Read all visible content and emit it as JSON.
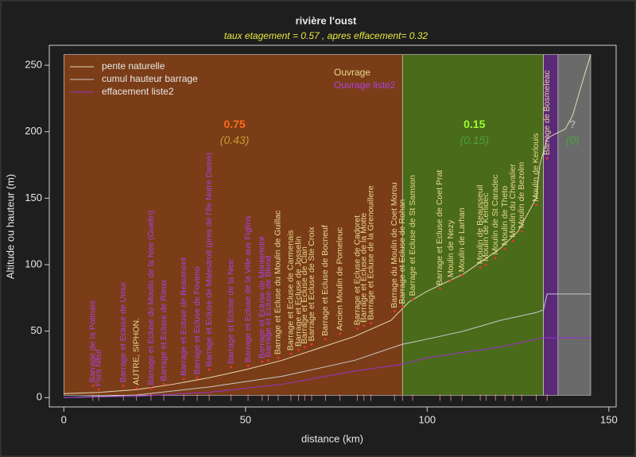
{
  "chart_data": {
    "type": "profile",
    "title": "rivière l'oust",
    "subtitle": "taux etagement = 0.57 , apres effacement= 0.32",
    "x_label": "distance (km)",
    "y_label": "Altitude ou hauteur (m)",
    "xlim": [
      -4,
      152
    ],
    "ylim": [
      -7,
      265
    ],
    "xticks": [
      0,
      50,
      100,
      150
    ],
    "yticks": [
      0,
      50,
      100,
      150,
      200,
      250
    ],
    "regions": [
      {
        "from": 0,
        "to": 93.2,
        "top": 258,
        "color": "#7a3d17"
      },
      {
        "from": 93.2,
        "to": 132,
        "top": 258,
        "color": "#4a6b1a"
      },
      {
        "from": 132,
        "to": 136,
        "top": 258,
        "color": "#5a2a78"
      },
      {
        "from": 136,
        "to": 145,
        "top": 258,
        "color": "#6a6a6a"
      }
    ],
    "series": [
      {
        "name": "pente naturelle",
        "color": "#e8d8b8",
        "x": [
          0,
          10,
          20,
          30,
          40,
          50,
          60,
          70,
          80,
          90,
          95,
          100,
          110,
          120,
          125,
          130,
          131,
          132,
          133,
          135,
          138,
          140,
          143,
          145
        ],
        "values": [
          3,
          4,
          6,
          10,
          15,
          21,
          28,
          37,
          46,
          58,
          72,
          80,
          93,
          112,
          125,
          150,
          175,
          185,
          195,
          198,
          202,
          212,
          240,
          258
        ]
      },
      {
        "name": "cumul hauteur barrage",
        "color": "#c8c8c8",
        "x": [
          0,
          20,
          40,
          60,
          80,
          93,
          100,
          110,
          120,
          130,
          132,
          133,
          145
        ],
        "values": [
          0,
          2,
          8,
          16,
          28,
          40,
          44,
          50,
          58,
          64,
          66,
          78,
          78
        ]
      },
      {
        "name": "effacement liste2",
        "color": "#9b30d0",
        "x": [
          0,
          20,
          40,
          60,
          80,
          93,
          100,
          120,
          132,
          133,
          145
        ],
        "values": [
          0,
          1,
          4,
          10,
          20,
          25,
          30,
          38,
          45,
          45,
          45
        ]
      }
    ],
    "label_groups": [
      {
        "name": "Ouvrage",
        "color": "#e8d890",
        "labels": [
          {
            "text": "AUTRE, SIPHON.",
            "x": 20,
            "y": 7
          },
          {
            "text": "Barrage et Ecluse du Moulin de Guillac",
            "x": 59,
            "y": 30
          },
          {
            "text": "Barrage et Ecluse de Carmenais",
            "x": 62.5,
            "y": 33
          },
          {
            "text": "Barrage et Ecluse de Josselin",
            "x": 64.6,
            "y": 36
          },
          {
            "text": "Barrage et Ecluse de Clan",
            "x": 66.3,
            "y": 38
          },
          {
            "text": "Barrage et Ecluse de Ste Croix",
            "x": 68.2,
            "y": 40
          },
          {
            "text": "Barrage et Ecluse de Bocneuf",
            "x": 72,
            "y": 44
          },
          {
            "text": "Ancien Moulin de Pomeleuc",
            "x": 76,
            "y": 48
          },
          {
            "text": "Barrage et Ecluse de Cadoret",
            "x": 80.8,
            "y": 52
          },
          {
            "text": "Barrage et Ecluse de la Motte",
            "x": 82.6,
            "y": 54
          },
          {
            "text": "Barrage et Ecluse de la Grenouillere",
            "x": 84.5,
            "y": 56
          },
          {
            "text": "Barrage du Moulin de Coet Morou",
            "x": 91,
            "y": 65
          },
          {
            "text": "Barrage et Ecluse de Rohan",
            "x": 93.2,
            "y": 68
          },
          {
            "text": "Barrage et Ecluse de St Samson",
            "x": 96,
            "y": 74
          },
          {
            "text": "Barrage et Ecluse de Coet Prat",
            "x": 103.5,
            "y": 82
          },
          {
            "text": "Moulin de Nezy",
            "x": 106.5,
            "y": 88
          },
          {
            "text": "Moulin de Larhan",
            "x": 109.6,
            "y": 92
          },
          {
            "text": "Moulin de Beausseuil",
            "x": 114.6,
            "y": 98
          },
          {
            "text": "Moulin de Kerlidec",
            "x": 116.2,
            "y": 100
          },
          {
            "text": "Moulin de St Caradec",
            "x": 118.8,
            "y": 105
          },
          {
            "text": "Moulin de Theto",
            "x": 121.4,
            "y": 112
          },
          {
            "text": "Moulin du Chevalier",
            "x": 123.6,
            "y": 118
          },
          {
            "text": "Moulin de Bezolm",
            "x": 126,
            "y": 125
          },
          {
            "text": "Moulin de Kerlouis",
            "x": 130,
            "y": 145
          },
          {
            "text": "Barrage de Bosmeleac",
            "x": 133,
            "y": 180
          }
        ]
      },
      {
        "name": "Ouvrage liste2",
        "color": "#b040e0",
        "labels": [
          {
            "text": "Barrage de la Potinais",
            "x": 8,
            "y": 9
          },
          {
            "text": "Pont Neuf",
            "x": 9.6,
            "y": 6
          },
          {
            "text": "Barrage et Ecluse de Umur",
            "x": 16.4,
            "y": 9
          },
          {
            "text": "Barrage et Ecluse du Moulin de la Nee (Guelin)",
            "x": 24,
            "y": 7
          },
          {
            "text": "Barrage et Ecluse de Rieux",
            "x": 27.5,
            "y": 10
          },
          {
            "text": "Barrage et Ecluse de Beaumont",
            "x": 33,
            "y": 14
          },
          {
            "text": "Barrage et Ecluse de Foveno",
            "x": 36.7,
            "y": 15
          },
          {
            "text": "Barrage et Ecluse de Malestroit (pres de l'Ile Notre Dame)",
            "x": 40,
            "y": 21
          },
          {
            "text": "Barrage et Ecluse de la Nee",
            "x": 46,
            "y": 23
          },
          {
            "text": "Barrage et Ecluse de la Ville aux Figlins",
            "x": 50.7,
            "y": 24
          },
          {
            "text": "Barrage et Ecluse de Montertelot",
            "x": 54.6,
            "y": 27
          },
          {
            "text": "Barrage et Ecluse de Blond",
            "x": 56.3,
            "y": 28
          }
        ]
      }
    ],
    "section_labels": [
      {
        "label": "0.75",
        "x": 47,
        "y": 205,
        "color": "#ff6a1a"
      },
      {
        "label": "(0.43)",
        "x": 47,
        "y": 193,
        "color": "#c89a30"
      },
      {
        "label": "0.15",
        "x": 113,
        "y": 205,
        "color": "#9cff30"
      },
      {
        "label": "(0.15)",
        "x": 113,
        "y": 193,
        "color": "#4ca040"
      },
      {
        "label": "?",
        "x": 140,
        "y": 205,
        "color": "#a8a8a8"
      },
      {
        "label": "(0)",
        "x": 140,
        "y": 193,
        "color": "#4ca040"
      }
    ]
  }
}
